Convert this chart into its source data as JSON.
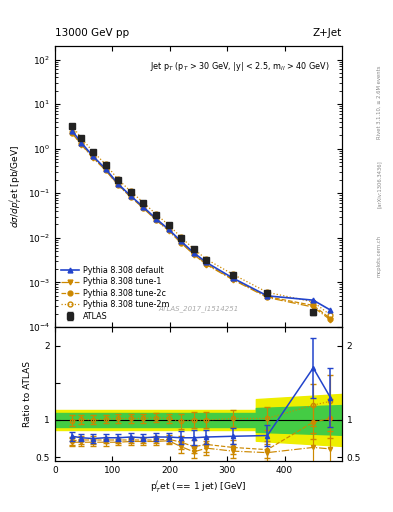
{
  "title_left": "13000 GeV pp",
  "title_right": "Z+Jet",
  "annotation": "Jet p$_T$ (p$_T$ > 30 GeV, |y| < 2.5, m$_{ll}$ > 40 GeV)",
  "watermark": "ATLAS_2017_I1514251",
  "right_label1": "Rivet 3.1.10, ≥ 2.6M events",
  "right_label2": "[arXiv:1306.3436]",
  "right_label3": "mcplots.cern.ch",
  "xlabel": "p$^{j}_{T}$et (== 1 jet) [GeV]",
  "ylabel_top": "dσ/dp$^{j}_{T}$et [pb/GeV]",
  "ylabel_bottom": "Ratio to ATLAS",
  "atlas_x": [
    30,
    46,
    66,
    88,
    110,
    132,
    154,
    176,
    198,
    220,
    242,
    264,
    310,
    370,
    450
  ],
  "atlas_y": [
    3.2,
    1.7,
    0.85,
    0.44,
    0.2,
    0.108,
    0.06,
    0.033,
    0.019,
    0.01,
    0.0055,
    0.0032,
    0.00145,
    0.00058,
    0.000215
  ],
  "atlas_yerr": [
    0.25,
    0.1,
    0.05,
    0.025,
    0.012,
    0.007,
    0.004,
    0.002,
    0.0015,
    0.001,
    0.00045,
    0.00028,
    0.00014,
    6e-05,
    2.5e-05
  ],
  "pythia_default_x": [
    30,
    46,
    66,
    88,
    110,
    132,
    154,
    176,
    198,
    220,
    242,
    264,
    310,
    370,
    450,
    480
  ],
  "pythia_default_y": [
    2.5,
    1.35,
    0.68,
    0.355,
    0.162,
    0.087,
    0.049,
    0.027,
    0.0155,
    0.0083,
    0.0046,
    0.0028,
    0.00125,
    0.0005,
    0.0004,
    0.00024
  ],
  "tune1_x": [
    30,
    46,
    66,
    88,
    110,
    132,
    154,
    176,
    198,
    220,
    242,
    264,
    310,
    370,
    450,
    480
  ],
  "tune1_y": [
    2.2,
    1.22,
    0.62,
    0.33,
    0.15,
    0.082,
    0.046,
    0.025,
    0.0145,
    0.0076,
    0.0042,
    0.0025,
    0.00115,
    0.00046,
    0.00028,
    0.000145
  ],
  "tune2c_x": [
    30,
    46,
    66,
    88,
    110,
    132,
    154,
    176,
    198,
    220,
    242,
    264,
    310,
    370,
    450,
    480
  ],
  "tune2c_y": [
    2.25,
    1.26,
    0.64,
    0.338,
    0.155,
    0.084,
    0.047,
    0.0255,
    0.0148,
    0.0078,
    0.0043,
    0.00258,
    0.00118,
    0.00048,
    0.000305,
    0.000155
  ],
  "tune2m_x": [
    30,
    46,
    66,
    88,
    110,
    132,
    154,
    176,
    198,
    220,
    242,
    264,
    310,
    370,
    450,
    480
  ],
  "tune2m_y": [
    3.2,
    1.72,
    0.86,
    0.45,
    0.204,
    0.11,
    0.062,
    0.034,
    0.0195,
    0.0102,
    0.0056,
    0.0033,
    0.00152,
    0.0006,
    0.000365,
    0.000185
  ],
  "ratio_default_x": [
    30,
    46,
    66,
    88,
    110,
    132,
    154,
    176,
    198,
    220,
    242,
    264,
    310,
    370,
    450,
    480
  ],
  "ratio_default_y": [
    0.78,
    0.76,
    0.75,
    0.76,
    0.76,
    0.77,
    0.76,
    0.77,
    0.77,
    0.76,
    0.76,
    0.77,
    0.78,
    0.79,
    1.7,
    1.3
  ],
  "ratio_default_yerr": [
    0.06,
    0.05,
    0.055,
    0.05,
    0.05,
    0.05,
    0.05,
    0.055,
    0.06,
    0.09,
    0.1,
    0.1,
    0.11,
    0.14,
    0.4,
    0.4
  ],
  "ratio_tune1_x": [
    30,
    46,
    66,
    88,
    110,
    132,
    154,
    176,
    198,
    220,
    242,
    264,
    310,
    370,
    450,
    480
  ],
  "ratio_tune1_y": [
    0.7,
    0.7,
    0.7,
    0.7,
    0.7,
    0.71,
    0.71,
    0.71,
    0.72,
    0.64,
    0.57,
    0.62,
    0.58,
    0.56,
    0.63,
    0.61
  ],
  "ratio_tune1_yerr": [
    0.055,
    0.048,
    0.048,
    0.045,
    0.044,
    0.044,
    0.044,
    0.046,
    0.05,
    0.08,
    0.08,
    0.09,
    0.09,
    0.11,
    0.2,
    0.24
  ],
  "ratio_tune2c_x": [
    30,
    46,
    66,
    88,
    110,
    132,
    154,
    176,
    198,
    220,
    242,
    264,
    310,
    370,
    450,
    480
  ],
  "ratio_tune2c_y": [
    0.72,
    0.73,
    0.73,
    0.73,
    0.73,
    0.73,
    0.73,
    0.73,
    0.74,
    0.7,
    0.64,
    0.67,
    0.63,
    0.6,
    0.97,
    1.02
  ],
  "ratio_tune2c_yerr": [
    0.056,
    0.049,
    0.049,
    0.046,
    0.045,
    0.045,
    0.045,
    0.047,
    0.051,
    0.085,
    0.085,
    0.095,
    0.095,
    0.115,
    0.22,
    0.26
  ],
  "ratio_tune2m_x": [
    30,
    46,
    66,
    88,
    110,
    132,
    154,
    176,
    198,
    220,
    242,
    264,
    310,
    370,
    450,
    480
  ],
  "ratio_tune2m_y": [
    0.99,
    1.01,
    1.0,
    1.01,
    1.02,
    1.02,
    1.02,
    1.03,
    1.02,
    0.98,
    1.0,
    1.0,
    1.02,
    1.02,
    1.2,
    1.25
  ],
  "ratio_tune2m_yerr": [
    0.07,
    0.062,
    0.06,
    0.057,
    0.056,
    0.056,
    0.057,
    0.059,
    0.063,
    0.1,
    0.105,
    0.11,
    0.12,
    0.15,
    0.28,
    0.35
  ],
  "color_atlas": "#222222",
  "color_default": "#2244cc",
  "color_orange": "#cc8800",
  "color_band_yellow": "#eeee00",
  "color_band_green": "#44cc44",
  "xlim": [
    0,
    500
  ],
  "ylim_top_lo": 0.0001,
  "ylim_top_hi": 200,
  "ylim_bottom_lo": 0.45,
  "ylim_bottom_hi": 2.25
}
